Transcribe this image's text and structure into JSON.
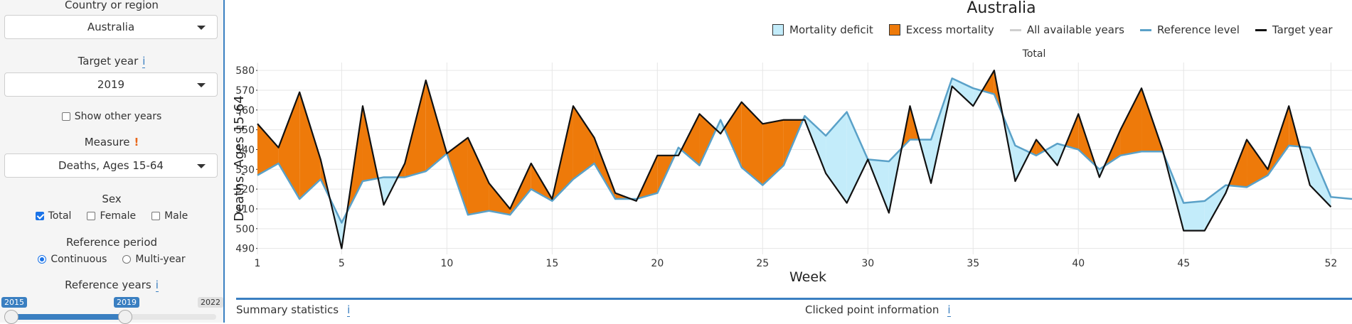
{
  "sidebar": {
    "country": {
      "label": "Country or region",
      "value": "Australia"
    },
    "target_year": {
      "label": "Target year",
      "info": "i",
      "value": "2019"
    },
    "show_other_years": {
      "label": "Show other years",
      "checked": false
    },
    "measure": {
      "label": "Measure",
      "warn": "!",
      "value": "Deaths, Ages 15-64"
    },
    "sex": {
      "label": "Sex",
      "options": [
        {
          "label": "Total",
          "checked": true
        },
        {
          "label": "Female",
          "checked": false
        },
        {
          "label": "Male",
          "checked": false
        }
      ]
    },
    "reference_period": {
      "label": "Reference period",
      "options": [
        {
          "label": "Continuous",
          "selected": true
        },
        {
          "label": "Multi-year",
          "selected": false
        }
      ]
    },
    "reference_years": {
      "label": "Reference years",
      "info": "i",
      "min": "2015",
      "from": "2019",
      "max": "2022"
    }
  },
  "chart": {
    "title": "Australia",
    "panel_title": "Total",
    "legend": [
      {
        "label": "Mortality deficit",
        "kind": "swatch",
        "color": "#c3ecfa"
      },
      {
        "label": "Excess mortality",
        "kind": "swatch",
        "color": "#ee7a0a"
      },
      {
        "label": "All available years",
        "kind": "line",
        "color": "#cfcfcf"
      },
      {
        "label": "Reference level",
        "kind": "line",
        "color": "#5aa1c8"
      },
      {
        "label": "Target year",
        "kind": "line",
        "color": "#111111"
      }
    ]
  },
  "chart_data": {
    "type": "area",
    "xlabel": "Week",
    "ylabel": "Deaths, Ages 15-64",
    "xlim": [
      1,
      53
    ],
    "ylim": [
      487,
      584
    ],
    "x_ticks": [
      1,
      5,
      10,
      15,
      20,
      25,
      30,
      35,
      40,
      45,
      52
    ],
    "y_ticks": [
      490,
      500,
      510,
      520,
      530,
      540,
      550,
      560,
      570,
      580
    ],
    "grid": true,
    "legend_position": "top",
    "colors": {
      "excess": "#ee7a0a",
      "deficit": "#c3ecfa",
      "reference": "#5aa1c8",
      "target": "#111111"
    },
    "series": [
      {
        "name": "Reference level",
        "x": [
          1,
          2,
          3,
          4,
          5,
          6,
          7,
          8,
          9,
          10,
          11,
          12,
          13,
          14,
          15,
          16,
          17,
          18,
          19,
          20,
          21,
          22,
          23,
          24,
          25,
          26,
          27,
          28,
          29,
          30,
          31,
          32,
          33,
          34,
          35,
          36,
          37,
          38,
          39,
          40,
          41,
          42,
          43,
          44,
          45,
          46,
          47,
          48,
          49,
          50,
          51,
          52,
          53
        ],
        "values": [
          527,
          533,
          515,
          525,
          503,
          524,
          526,
          526,
          529,
          538,
          507,
          509,
          507,
          520,
          514,
          525,
          533,
          515,
          515,
          518,
          541,
          532,
          555,
          531,
          522,
          532,
          557,
          547,
          559,
          535,
          534,
          545,
          545,
          576,
          571,
          568,
          542,
          537,
          543,
          540,
          530,
          537,
          539,
          539,
          513,
          514,
          522,
          521,
          527,
          542,
          541,
          516,
          515
        ]
      },
      {
        "name": "Target year",
        "x": [
          1,
          2,
          3,
          4,
          5,
          6,
          7,
          8,
          9,
          10,
          11,
          12,
          13,
          14,
          15,
          16,
          17,
          18,
          19,
          20,
          21,
          22,
          23,
          24,
          25,
          26,
          27,
          28,
          29,
          30,
          31,
          32,
          33,
          34,
          35,
          36,
          37,
          38,
          39,
          40,
          41,
          42,
          43,
          44,
          45,
          46,
          47,
          48,
          49,
          50,
          51,
          52
        ],
        "values": [
          553,
          541,
          569,
          535,
          490,
          562,
          512,
          533,
          575,
          538,
          546,
          523,
          510,
          533,
          515,
          562,
          546,
          518,
          514,
          537,
          537,
          558,
          548,
          564,
          553,
          555,
          555,
          528,
          513,
          535,
          508,
          562,
          523,
          572,
          562,
          580,
          524,
          545,
          532,
          558,
          526,
          550,
          571,
          540,
          499,
          499,
          518,
          545,
          530,
          562,
          522,
          511
        ]
      }
    ]
  },
  "bottom": {
    "summary_label": "Summary statistics",
    "summary_info": "i",
    "clicked_label": "Clicked point information",
    "clicked_info": "i"
  }
}
